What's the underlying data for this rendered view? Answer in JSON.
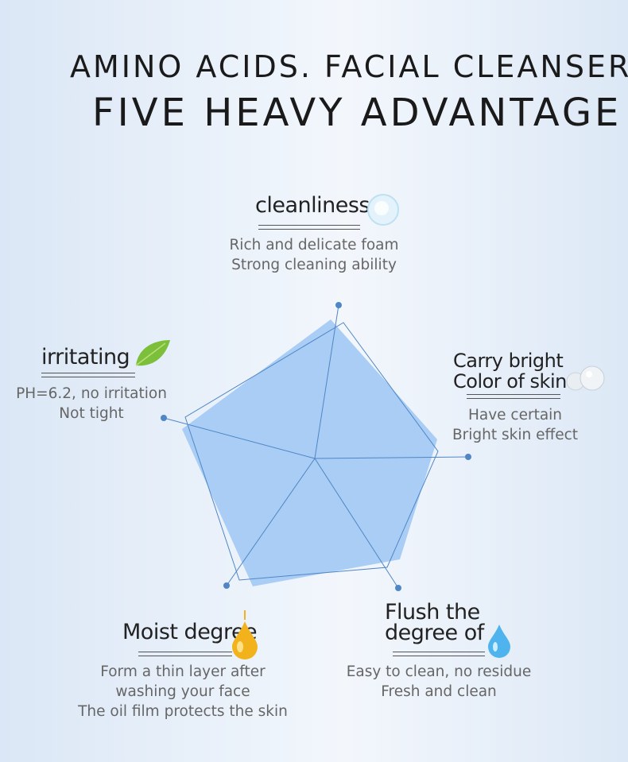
{
  "title_line1": "AMINO ACIDS. FACIAL CLEANSER",
  "title_line2": "FIVE HEAVY ADVANTAGE",
  "features": [
    {
      "heading": "cleanliness",
      "lines": [
        "Rich and delicate foam",
        "Strong cleaning ability"
      ],
      "icon": "foam-bubble-icon"
    },
    {
      "heading_lines": [
        "Carry bright",
        "Color of skin"
      ],
      "lines": [
        "Have certain",
        "Bright skin effect"
      ],
      "icon": "pearls-icon"
    },
    {
      "heading_lines": [
        "Flush the",
        "degree of"
      ],
      "lines": [
        "Easy to clean, no residue",
        "Fresh and clean"
      ],
      "icon": "water-drop-icon"
    },
    {
      "heading": "Moist degree",
      "lines": [
        "Form a thin layer after",
        "washing your face",
        "The oil film protects the skin"
      ],
      "icon": "oil-drop-icon"
    },
    {
      "heading": "irritating",
      "lines": [
        "PH=6.2, no irritation",
        "Not tight"
      ],
      "icon": "leaf-icon"
    }
  ],
  "colors": {
    "fill": "#a9cdf5",
    "line": "#4f86c6"
  }
}
